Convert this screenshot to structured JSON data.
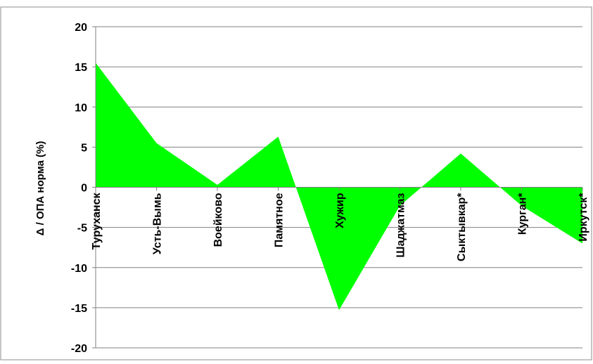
{
  "chart_data": {
    "type": "area",
    "title": "",
    "xlabel": "",
    "ylabel": "Δ / ОПА норма (%)",
    "ylim": [
      -20,
      20
    ],
    "yticks": [
      20,
      15,
      10,
      5,
      0,
      -5,
      -10,
      -15,
      -20
    ],
    "grid": true,
    "legend": "none",
    "categories": [
      "Туруханск",
      "Усть-Вымь",
      "Воейково",
      "Памятное",
      "Хужир",
      "Шаджатмаз",
      "Сыктывкар*",
      "Курган*",
      "Иркутск*"
    ],
    "series": [
      {
        "values": [
          15.5,
          5.5,
          0.3,
          6.3,
          -15.3,
          -2.3,
          4.2,
          -2.3,
          -7.0
        ]
      }
    ],
    "colors": {
      "fill": "#00ff00",
      "grid": "#808080",
      "axis": "#808080",
      "border": "#8c8c8c"
    }
  }
}
